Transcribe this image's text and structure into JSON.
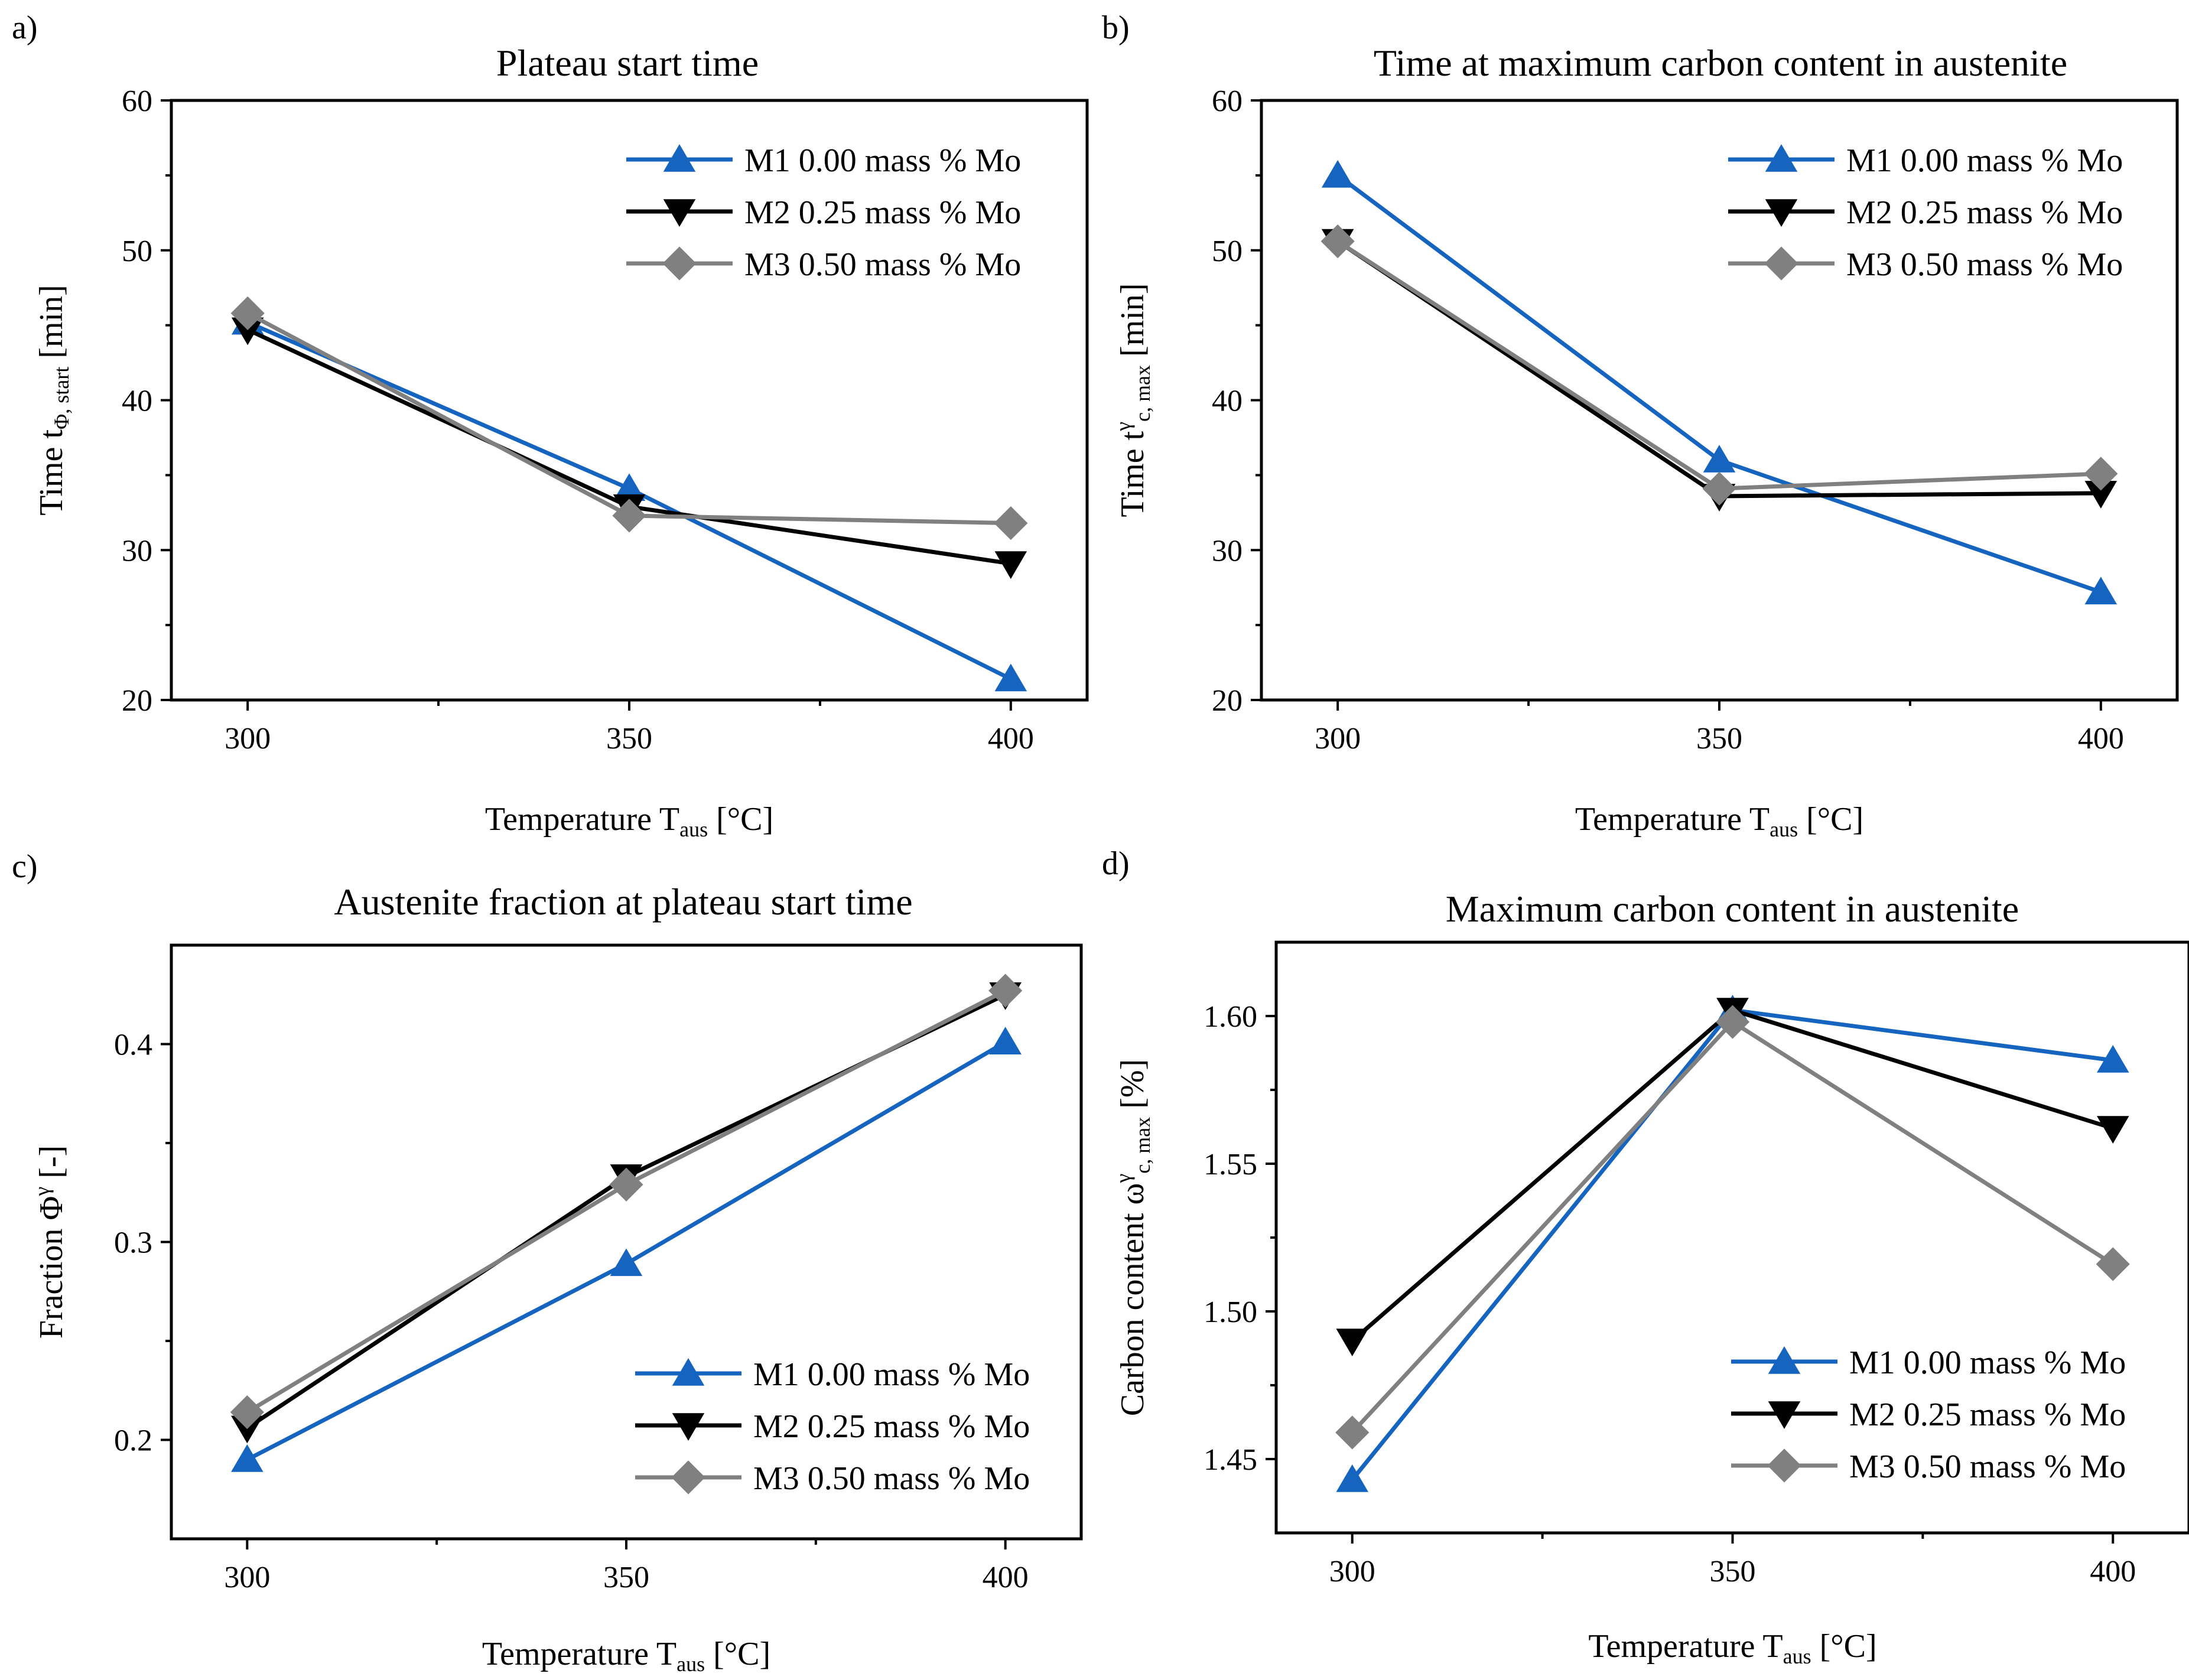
{
  "chart_data": [
    {
      "type": "line",
      "panel": "a)",
      "title": "Plateau start time",
      "xlabel": {
        "main": "Temperature T",
        "sub": "aus",
        "unit": " [°C]"
      },
      "ylabel": {
        "main": "Time t",
        "sub": "Φ, start",
        "unit": " [min]"
      },
      "x": [
        300,
        350,
        400
      ],
      "xlim": [
        290,
        410
      ],
      "ylim": [
        20,
        60
      ],
      "xticks": [
        300,
        350,
        400
      ],
      "yticks": [
        20,
        30,
        40,
        50,
        60
      ],
      "ytick_labels": [
        "20",
        "30",
        "40",
        "50",
        "60"
      ],
      "legend": "top-right",
      "series": [
        {
          "name": "M1 0.00 mass % Mo",
          "color": "#1565c0",
          "marker": "triangle-up",
          "values": [
            45.2,
            34.1,
            21.4
          ]
        },
        {
          "name": "M2 0.25 mass % Mo",
          "color": "#000000",
          "marker": "triangle-down",
          "values": [
            44.7,
            32.9,
            29.1
          ]
        },
        {
          "name": "M3 0.50 mass % Mo",
          "color": "#808080",
          "marker": "diamond",
          "values": [
            45.8,
            32.3,
            31.8
          ]
        }
      ]
    },
    {
      "type": "line",
      "panel": "b)",
      "title": "Time at maximum carbon content in austenite",
      "xlabel": {
        "main": "Temperature T",
        "sub": "aus",
        "unit": " [°C]"
      },
      "ylabel": {
        "main": "Time t",
        "sup": "γ",
        "sub": "c, max",
        "unit": " [min]"
      },
      "x": [
        300,
        350,
        400
      ],
      "xlim": [
        290,
        410
      ],
      "ylim": [
        20,
        60
      ],
      "xticks": [
        300,
        350,
        400
      ],
      "yticks": [
        20,
        30,
        40,
        50,
        60
      ],
      "ytick_labels": [
        "20",
        "30",
        "40",
        "50",
        "60"
      ],
      "legend": "top-right",
      "series": [
        {
          "name": "M1 0.00 mass % Mo",
          "color": "#1565c0",
          "marker": "triangle-up",
          "values": [
            55.0,
            36.0,
            27.2
          ]
        },
        {
          "name": "M2 0.25 mass % Mo",
          "color": "#000000",
          "marker": "triangle-down",
          "values": [
            50.6,
            33.6,
            33.8
          ]
        },
        {
          "name": "M3 0.50 mass % Mo",
          "color": "#808080",
          "marker": "diamond",
          "values": [
            50.6,
            34.1,
            35.1
          ]
        }
      ]
    },
    {
      "type": "line",
      "panel": "c)",
      "title": "Austenite fraction at plateau start time",
      "xlabel": {
        "main": "Temperature T",
        "sub": "aus",
        "unit": " [°C]"
      },
      "ylabel": {
        "main": "Fraction Φ",
        "sup": "γ",
        "unit": " [-]"
      },
      "x": [
        300,
        350,
        400
      ],
      "xlim": [
        290,
        410
      ],
      "ylim": [
        0.15,
        0.45
      ],
      "xticks": [
        300,
        350,
        400
      ],
      "yticks": [
        0.2,
        0.3,
        0.4
      ],
      "ytick_labels": [
        "0.2",
        "0.3",
        "0.4"
      ],
      "legend": "bottom-right",
      "series": [
        {
          "name": "M1 0.00 mass % Mo",
          "color": "#1565c0",
          "marker": "triangle-up",
          "values": [
            0.19,
            0.289,
            0.401
          ]
        },
        {
          "name": "M2 0.25 mass % Mo",
          "color": "#000000",
          "marker": "triangle-down",
          "values": [
            0.206,
            0.333,
            0.425
          ]
        },
        {
          "name": "M3 0.50 mass % Mo",
          "color": "#808080",
          "marker": "diamond",
          "values": [
            0.214,
            0.329,
            0.427
          ]
        }
      ]
    },
    {
      "type": "line",
      "panel": "d)",
      "title": "Maximum carbon content in austenite",
      "xlabel": {
        "main": "Temperature T",
        "sub": "aus",
        "unit": " [°C]"
      },
      "ylabel": {
        "main": "Carbon content ω",
        "sup": "γ",
        "sub": "c, max",
        "unit": " [%]"
      },
      "x": [
        300,
        350,
        400
      ],
      "xlim": [
        290,
        410
      ],
      "ylim": [
        1.425,
        1.625
      ],
      "xticks": [
        300,
        350,
        400
      ],
      "yticks": [
        1.45,
        1.5,
        1.55,
        1.6
      ],
      "ytick_labels": [
        "1.45",
        "1.50",
        "1.55",
        "1.60"
      ],
      "legend": "bottom-right",
      "series": [
        {
          "name": "M1 0.00 mass % Mo",
          "color": "#1565c0",
          "marker": "triangle-up",
          "values": [
            1.443,
            1.602,
            1.585
          ]
        },
        {
          "name": "M2 0.25 mass % Mo",
          "color": "#000000",
          "marker": "triangle-down",
          "values": [
            1.49,
            1.602,
            1.562
          ]
        },
        {
          "name": "M3 0.50 mass % Mo",
          "color": "#808080",
          "marker": "diamond",
          "values": [
            1.459,
            1.598,
            1.516
          ]
        }
      ]
    }
  ]
}
